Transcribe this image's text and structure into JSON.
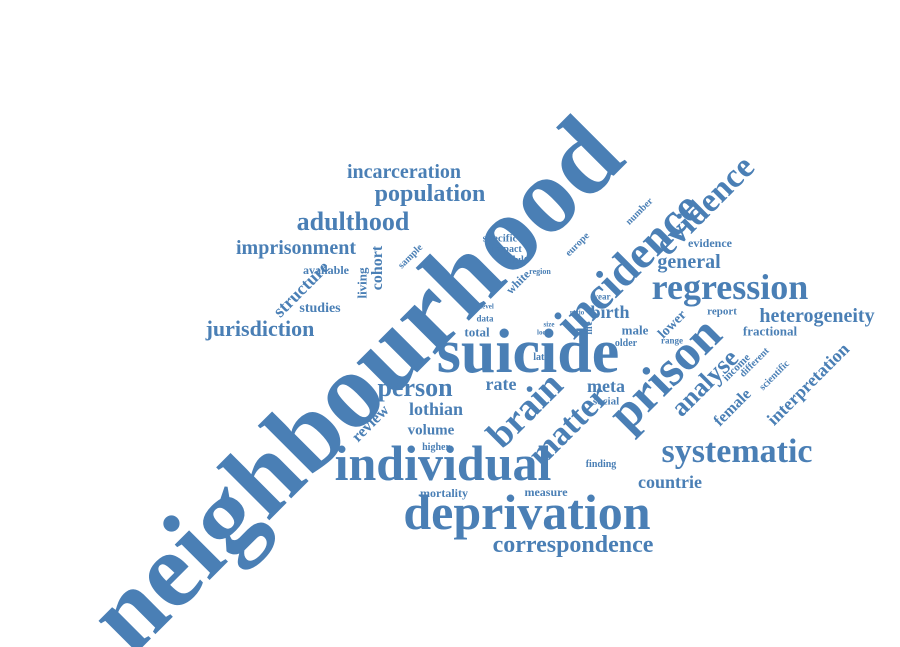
{
  "color": "#4a7fb5",
  "words": [
    {
      "text": "neighbourhood",
      "weight": 1.0,
      "orientation": "diagonal-up"
    },
    {
      "text": "suicide",
      "weight": 0.45,
      "orientation": "horizontal"
    },
    {
      "text": "incidence",
      "weight": 0.42,
      "orientation": "diagonal-up"
    },
    {
      "text": "prison",
      "weight": 0.4,
      "orientation": "diagonal-up"
    },
    {
      "text": "deprivation",
      "weight": 0.36,
      "orientation": "horizontal"
    },
    {
      "text": "individual",
      "weight": 0.36,
      "orientation": "horizontal"
    },
    {
      "text": "regression",
      "weight": 0.28,
      "orientation": "horizontal"
    },
    {
      "text": "brain",
      "weight": 0.26,
      "orientation": "diagonal-up"
    },
    {
      "text": "evidence",
      "weight": 0.24,
      "orientation": "diagonal-up"
    },
    {
      "text": "matter",
      "weight": 0.24,
      "orientation": "diagonal-up"
    },
    {
      "text": "systematic",
      "weight": 0.22,
      "orientation": "horizontal"
    },
    {
      "text": "person",
      "weight": 0.2,
      "orientation": "horizontal"
    },
    {
      "text": "adulthood",
      "weight": 0.18,
      "orientation": "horizontal"
    },
    {
      "text": "analyse",
      "weight": 0.17,
      "orientation": "diagonal-up"
    },
    {
      "text": "population",
      "weight": 0.16,
      "orientation": "horizontal"
    },
    {
      "text": "correspondence",
      "weight": 0.16,
      "orientation": "horizontal"
    },
    {
      "text": "incarceration",
      "weight": 0.15,
      "orientation": "horizontal"
    },
    {
      "text": "jurisdiction",
      "weight": 0.15,
      "orientation": "horizontal"
    },
    {
      "text": "imprisonment",
      "weight": 0.14,
      "orientation": "horizontal"
    },
    {
      "text": "heterogeneity",
      "weight": 0.13,
      "orientation": "horizontal"
    },
    {
      "text": "general",
      "weight": 0.13,
      "orientation": "horizontal"
    },
    {
      "text": "countrie",
      "weight": 0.13,
      "orientation": "horizontal"
    },
    {
      "text": "interpretation",
      "weight": 0.12,
      "orientation": "diagonal-up"
    },
    {
      "text": "structure",
      "weight": 0.12,
      "orientation": "diagonal-up"
    },
    {
      "text": "lothian",
      "weight": 0.12,
      "orientation": "horizontal"
    },
    {
      "text": "rate",
      "weight": 0.12,
      "orientation": "horizontal"
    },
    {
      "text": "birth",
      "weight": 0.12,
      "orientation": "horizontal"
    },
    {
      "text": "meta",
      "weight": 0.12,
      "orientation": "horizontal"
    },
    {
      "text": "female",
      "weight": 0.11,
      "orientation": "diagonal-up"
    },
    {
      "text": "volume",
      "weight": 0.11,
      "orientation": "horizontal"
    },
    {
      "text": "review",
      "weight": 0.1,
      "orientation": "diagonal-up"
    },
    {
      "text": "cohort",
      "weight": 0.1,
      "orientation": "vertical-up"
    },
    {
      "text": "studies",
      "weight": 0.1,
      "orientation": "horizontal"
    },
    {
      "text": "living",
      "weight": 0.09,
      "orientation": "vertical-up"
    },
    {
      "text": "lower",
      "weight": 0.09,
      "orientation": "diagonal-up"
    },
    {
      "text": "male",
      "weight": 0.09,
      "orientation": "horizontal"
    },
    {
      "text": "evidence",
      "weight": 0.09,
      "orientation": "horizontal"
    },
    {
      "text": "fractional",
      "weight": 0.09,
      "orientation": "horizontal"
    },
    {
      "text": "total",
      "weight": 0.08,
      "orientation": "horizontal"
    },
    {
      "text": "mortality",
      "weight": 0.08,
      "orientation": "horizontal"
    },
    {
      "text": "measure",
      "weight": 0.08,
      "orientation": "horizontal"
    },
    {
      "text": "available",
      "weight": 0.08,
      "orientation": "horizontal"
    },
    {
      "text": "white",
      "weight": 0.08,
      "orientation": "diagonal-up"
    },
    {
      "text": "specific",
      "weight": 0.07,
      "orientation": "horizontal"
    },
    {
      "text": "social",
      "weight": 0.07,
      "orientation": "horizontal"
    },
    {
      "text": "report",
      "weight": 0.07,
      "orientation": "horizontal"
    },
    {
      "text": "income",
      "weight": 0.07,
      "orientation": "diagonal-up"
    },
    {
      "text": "different",
      "weight": 0.06,
      "orientation": "diagonal-up"
    },
    {
      "text": "scientific",
      "weight": 0.06,
      "orientation": "diagonal-up"
    },
    {
      "text": "finding",
      "weight": 0.06,
      "orientation": "horizontal"
    },
    {
      "text": "higher",
      "weight": 0.06,
      "orientation": "horizontal"
    },
    {
      "text": "older",
      "weight": 0.06,
      "orientation": "horizontal"
    },
    {
      "text": "late",
      "weight": 0.06,
      "orientation": "horizontal"
    },
    {
      "text": "life",
      "weight": 0.06,
      "orientation": "vertical-up"
    },
    {
      "text": "sample",
      "weight": 0.06,
      "orientation": "diagonal-up"
    },
    {
      "text": "europe",
      "weight": 0.06,
      "orientation": "diagonal-up"
    },
    {
      "text": "number",
      "weight": 0.06,
      "orientation": "diagonal-up"
    },
    {
      "text": "impact",
      "weight": 0.06,
      "orientation": "horizontal"
    },
    {
      "text": "adult",
      "weight": 0.06,
      "orientation": "horizontal"
    },
    {
      "text": "region",
      "weight": 0.05,
      "orientation": "horizontal"
    },
    {
      "text": "year",
      "weight": 0.05,
      "orientation": "horizontal"
    },
    {
      "text": "range",
      "weight": 0.05,
      "orientation": "horizontal"
    },
    {
      "text": "grey",
      "weight": 0.05,
      "orientation": "vertical-up"
    },
    {
      "text": "data",
      "weight": 0.05,
      "orientation": "horizontal"
    },
    {
      "text": "level",
      "weight": 0.04,
      "orientation": "horizontal"
    },
    {
      "text": "ratio",
      "weight": 0.04,
      "orientation": "horizontal"
    },
    {
      "text": "size",
      "weight": 0.04,
      "orientation": "horizontal"
    },
    {
      "text": "local",
      "weight": 0.04,
      "orientation": "horizontal"
    }
  ]
}
